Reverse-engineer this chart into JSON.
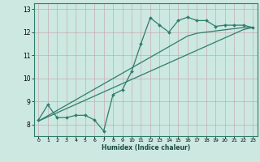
{
  "x_data": [
    0,
    1,
    2,
    3,
    4,
    5,
    6,
    7,
    8,
    9,
    10,
    11,
    12,
    13,
    14,
    15,
    16,
    17,
    18,
    19,
    20,
    21,
    22,
    23
  ],
  "y_jagged": [
    8.2,
    8.85,
    8.3,
    8.3,
    8.4,
    8.4,
    8.2,
    7.72,
    9.3,
    9.5,
    10.3,
    11.5,
    12.62,
    12.3,
    12.0,
    12.5,
    12.65,
    12.5,
    12.5,
    12.25,
    12.3,
    12.3,
    12.3,
    12.2
  ],
  "y_line1": [
    8.15,
    8.33,
    8.51,
    8.69,
    8.87,
    9.05,
    9.23,
    9.41,
    9.59,
    9.77,
    9.95,
    10.13,
    10.31,
    10.49,
    10.67,
    10.85,
    11.03,
    11.21,
    11.39,
    11.57,
    11.75,
    11.93,
    12.11,
    12.2
  ],
  "y_line2": [
    8.15,
    8.38,
    8.61,
    8.84,
    9.07,
    9.3,
    9.53,
    9.76,
    9.99,
    10.22,
    10.45,
    10.68,
    10.91,
    11.14,
    11.37,
    11.6,
    11.83,
    11.95,
    12.0,
    12.05,
    12.1,
    12.15,
    12.2,
    12.2
  ],
  "line_color": "#2e7d6b",
  "bg_color": "#cce8e0",
  "grid_color": "#aad0c8",
  "xlabel": "Humidex (Indice chaleur)",
  "xlim": [
    -0.5,
    23.5
  ],
  "ylim": [
    7.5,
    13.25
  ],
  "yticks": [
    8,
    9,
    10,
    11,
    12,
    13
  ],
  "xticks": [
    0,
    1,
    2,
    3,
    4,
    5,
    6,
    7,
    8,
    9,
    10,
    11,
    12,
    13,
    14,
    15,
    16,
    17,
    18,
    19,
    20,
    21,
    22,
    23
  ]
}
